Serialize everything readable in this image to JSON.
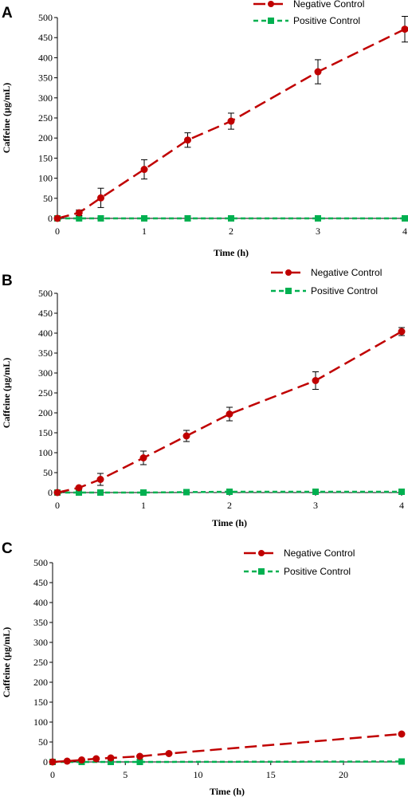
{
  "colors": {
    "negative": "#c00000",
    "positive": "#00b050",
    "axis": "#000000"
  },
  "chart_data": [
    {
      "type": "line",
      "panel_label": "A",
      "xlabel": "Time (h)",
      "ylabel": "Caffeine (µg/mL)",
      "xlim": [
        0,
        4
      ],
      "ylim": [
        0,
        500
      ],
      "xticks": [
        0,
        1,
        2,
        3,
        4
      ],
      "yticks": [
        0,
        50,
        100,
        150,
        200,
        250,
        300,
        350,
        400,
        450,
        500
      ],
      "legend_position": "top-right",
      "series": [
        {
          "name": "Negative Control",
          "x": [
            0,
            0.25,
            0.5,
            1,
            1.5,
            2,
            3,
            4
          ],
          "y": [
            0,
            14,
            51,
            122,
            195,
            242,
            365,
            471
          ],
          "error": [
            0,
            7,
            24,
            24,
            18,
            20,
            30,
            32
          ]
        },
        {
          "name": "Positive Control",
          "x": [
            0,
            0.25,
            0.5,
            1,
            1.5,
            2,
            3,
            4
          ],
          "y": [
            0,
            0,
            0,
            0,
            0,
            0,
            0,
            0
          ]
        }
      ]
    },
    {
      "type": "line",
      "panel_label": "B",
      "xlabel": "Time (h)",
      "ylabel": "Caffeine (µg/mL)",
      "xlim": [
        0,
        4
      ],
      "ylim": [
        0,
        500
      ],
      "xticks": [
        0,
        1,
        2,
        3,
        4
      ],
      "yticks": [
        0,
        50,
        100,
        150,
        200,
        250,
        300,
        350,
        400,
        450,
        500
      ],
      "legend_position": "top-right",
      "series": [
        {
          "name": "Negative Control",
          "x": [
            0,
            0.25,
            0.5,
            1,
            1.5,
            2,
            3,
            4
          ],
          "y": [
            0,
            12,
            33,
            87,
            142,
            197,
            281,
            404
          ],
          "error": [
            0,
            3,
            15,
            17,
            14,
            17,
            22,
            10
          ]
        },
        {
          "name": "Positive Control",
          "x": [
            0,
            0.25,
            0.5,
            1,
            1.5,
            2,
            3,
            4
          ],
          "y": [
            0,
            0,
            0,
            0,
            1,
            2,
            2,
            2
          ]
        }
      ]
    },
    {
      "type": "line",
      "panel_label": "C",
      "xlabel": "Time (h)",
      "ylabel": "Caffeine (µg/mL)",
      "xlim": [
        0,
        24
      ],
      "ylim": [
        0,
        500
      ],
      "xticks": [
        0,
        5,
        10,
        15,
        20
      ],
      "yticks": [
        0,
        50,
        100,
        150,
        200,
        250,
        300,
        350,
        400,
        450,
        500
      ],
      "legend_position": "top-right",
      "series": [
        {
          "name": "Negative Control",
          "x": [
            0,
            1,
            2,
            3,
            4,
            6,
            8,
            24
          ],
          "y": [
            0,
            2,
            5,
            8,
            10,
            14,
            21,
            70
          ],
          "error": [
            0,
            0,
            0,
            0,
            0,
            0,
            0,
            0
          ]
        },
        {
          "name": "Positive Control",
          "x": [
            0,
            2,
            4,
            6,
            24
          ],
          "y": [
            0,
            0,
            0,
            0,
            1
          ]
        }
      ]
    }
  ]
}
